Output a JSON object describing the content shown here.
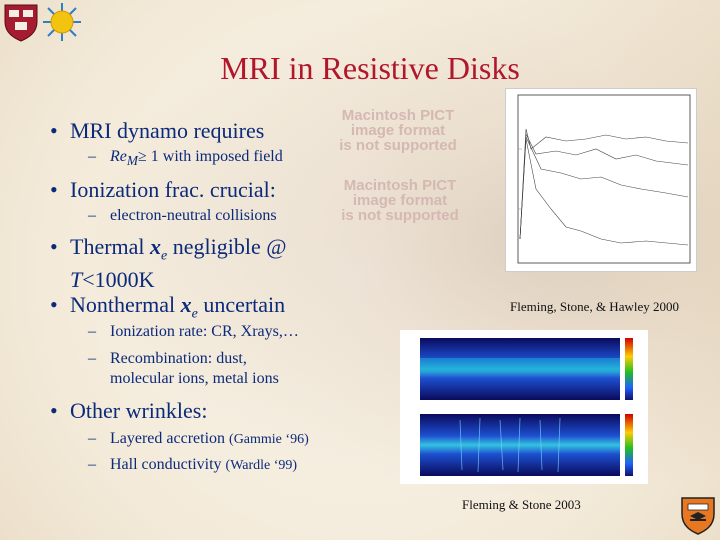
{
  "title": "MRI in Resistive Disks",
  "bullets": [
    {
      "text": "MRI dynamo requires"
    },
    {
      "text": "Ionization frac. crucial:"
    },
    {
      "text_a": "Thermal ",
      "var": "x",
      "sub": "e",
      "text_b": " negligible @",
      "line2_var": "T",
      "line2_rest": "<1000K"
    },
    {
      "text_a": "Nonthermal ",
      "var": "x",
      "sub": "e",
      "text_b": " uncertain"
    },
    {
      "text": "Other wrinkles:"
    }
  ],
  "subs": {
    "re_m": {
      "var": "Re",
      "sub": "M",
      "rest": "≥ 1 with imposed field"
    },
    "electron": "electron-neutral collisions",
    "ionization": "Ionization rate: CR, Xrays,…",
    "recomb_1": "Recombination: dust,",
    "recomb_2": "molecular ions, metal ions",
    "layered": "Layered accretion",
    "layered_ref": "(Gammie ‘96)",
    "hall": "Hall conductivity",
    "hall_ref": "(Wardle ‘99)"
  },
  "pict_placeholder": {
    "line1": "Macintosh PICT",
    "line2": "image format",
    "line3": "is not supported"
  },
  "captions": {
    "fsh": "Fleming, Stone, & Hawley 2000",
    "fs": "Fleming & Stone 2003"
  },
  "logos": {
    "harvard": "shield-icon",
    "sun": "sun-icon",
    "princeton": "shield-icon"
  },
  "colors": {
    "title": "#b1162a",
    "text": "#0b2a7a",
    "harvard": "#a51c30",
    "princeton_orange": "#e87722"
  }
}
